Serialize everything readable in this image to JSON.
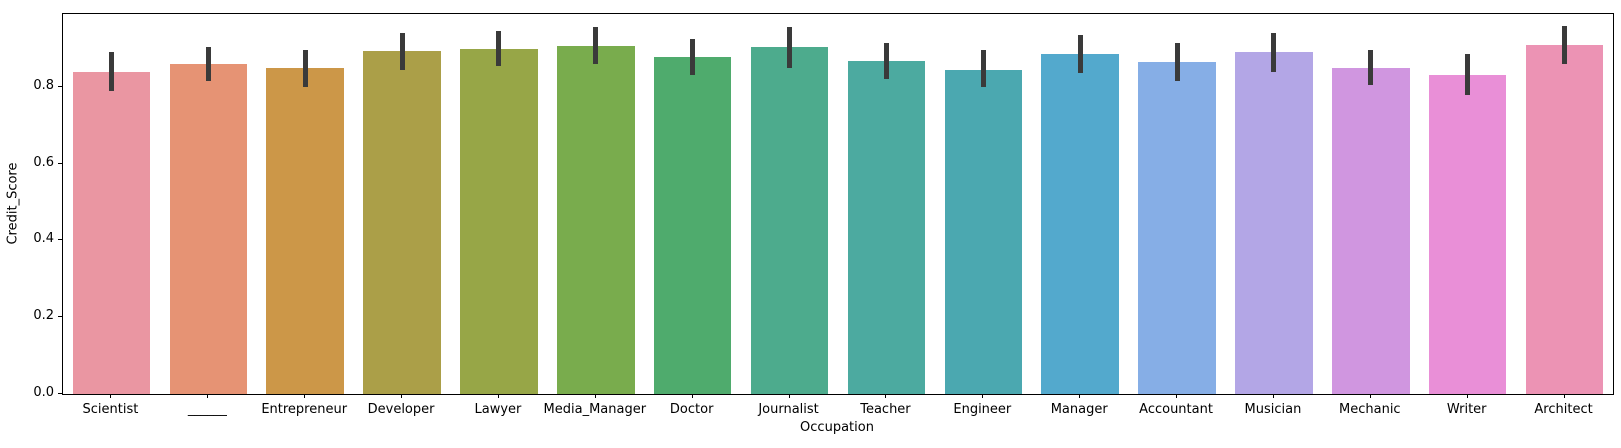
{
  "figure": {
    "background": "#ffffff",
    "spine_color": "#000000",
    "error_bar_color": "#3a3a3a",
    "text_color": "#000000"
  },
  "chart_data": {
    "type": "bar",
    "title": "",
    "xlabel": "Occupation",
    "ylabel": "Credit_Score",
    "categories": [
      "Scientist",
      "______",
      "Entrepreneur",
      "Developer",
      "Lawyer",
      "Media_Manager",
      "Doctor",
      "Journalist",
      "Teacher",
      "Engineer",
      "Manager",
      "Accountant",
      "Musician",
      "Mechanic",
      "Writer",
      "Architect"
    ],
    "values": [
      0.84,
      0.86,
      0.85,
      0.893,
      0.9,
      0.907,
      0.878,
      0.903,
      0.868,
      0.845,
      0.885,
      0.865,
      0.89,
      0.85,
      0.83,
      0.91
    ],
    "error_low": [
      0.79,
      0.815,
      0.8,
      0.845,
      0.855,
      0.86,
      0.83,
      0.85,
      0.82,
      0.8,
      0.835,
      0.815,
      0.84,
      0.805,
      0.78,
      0.86
    ],
    "error_high": [
      0.89,
      0.905,
      0.895,
      0.94,
      0.945,
      0.955,
      0.925,
      0.955,
      0.915,
      0.895,
      0.935,
      0.915,
      0.94,
      0.895,
      0.885,
      0.958
    ],
    "bar_colors": [
      "#ea96a2",
      "#e69374",
      "#cc9748",
      "#ab9f48",
      "#97a647",
      "#79ac4d",
      "#4fab6d",
      "#4dab8d",
      "#4caaa0",
      "#4ba8b0",
      "#53a9cd",
      "#86aee6",
      "#b3a6e6",
      "#d096e0",
      "#e98fd7",
      "#ec93b4"
    ],
    "ytick_labels": [
      "0.0",
      "0.2",
      "0.4",
      "0.6",
      "0.8"
    ],
    "ytick_values": [
      0.0,
      0.2,
      0.4,
      0.6,
      0.8
    ],
    "ylim": [
      0,
      0.99
    ],
    "bar_width_fraction": 0.8,
    "grid": false,
    "legend_position": "none"
  }
}
